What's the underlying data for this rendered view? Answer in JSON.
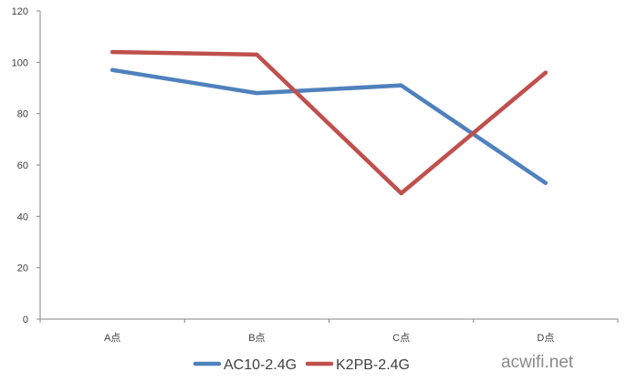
{
  "chart_data": {
    "type": "line",
    "categories": [
      "A点",
      "B点",
      "C点",
      "D点"
    ],
    "series": [
      {
        "name": "AC10-2.4G",
        "values": [
          97,
          88,
          91,
          53
        ],
        "color": "#4f81bd"
      },
      {
        "name": "K2PB-2.4G",
        "values": [
          104,
          103,
          49,
          96
        ],
        "color": "#c0504d"
      }
    ],
    "ylim": [
      0,
      120
    ],
    "yticks": [
      0,
      20,
      40,
      60,
      80,
      100,
      120
    ],
    "grid": false,
    "legend": "bottom"
  },
  "watermark": "acwifi.net"
}
